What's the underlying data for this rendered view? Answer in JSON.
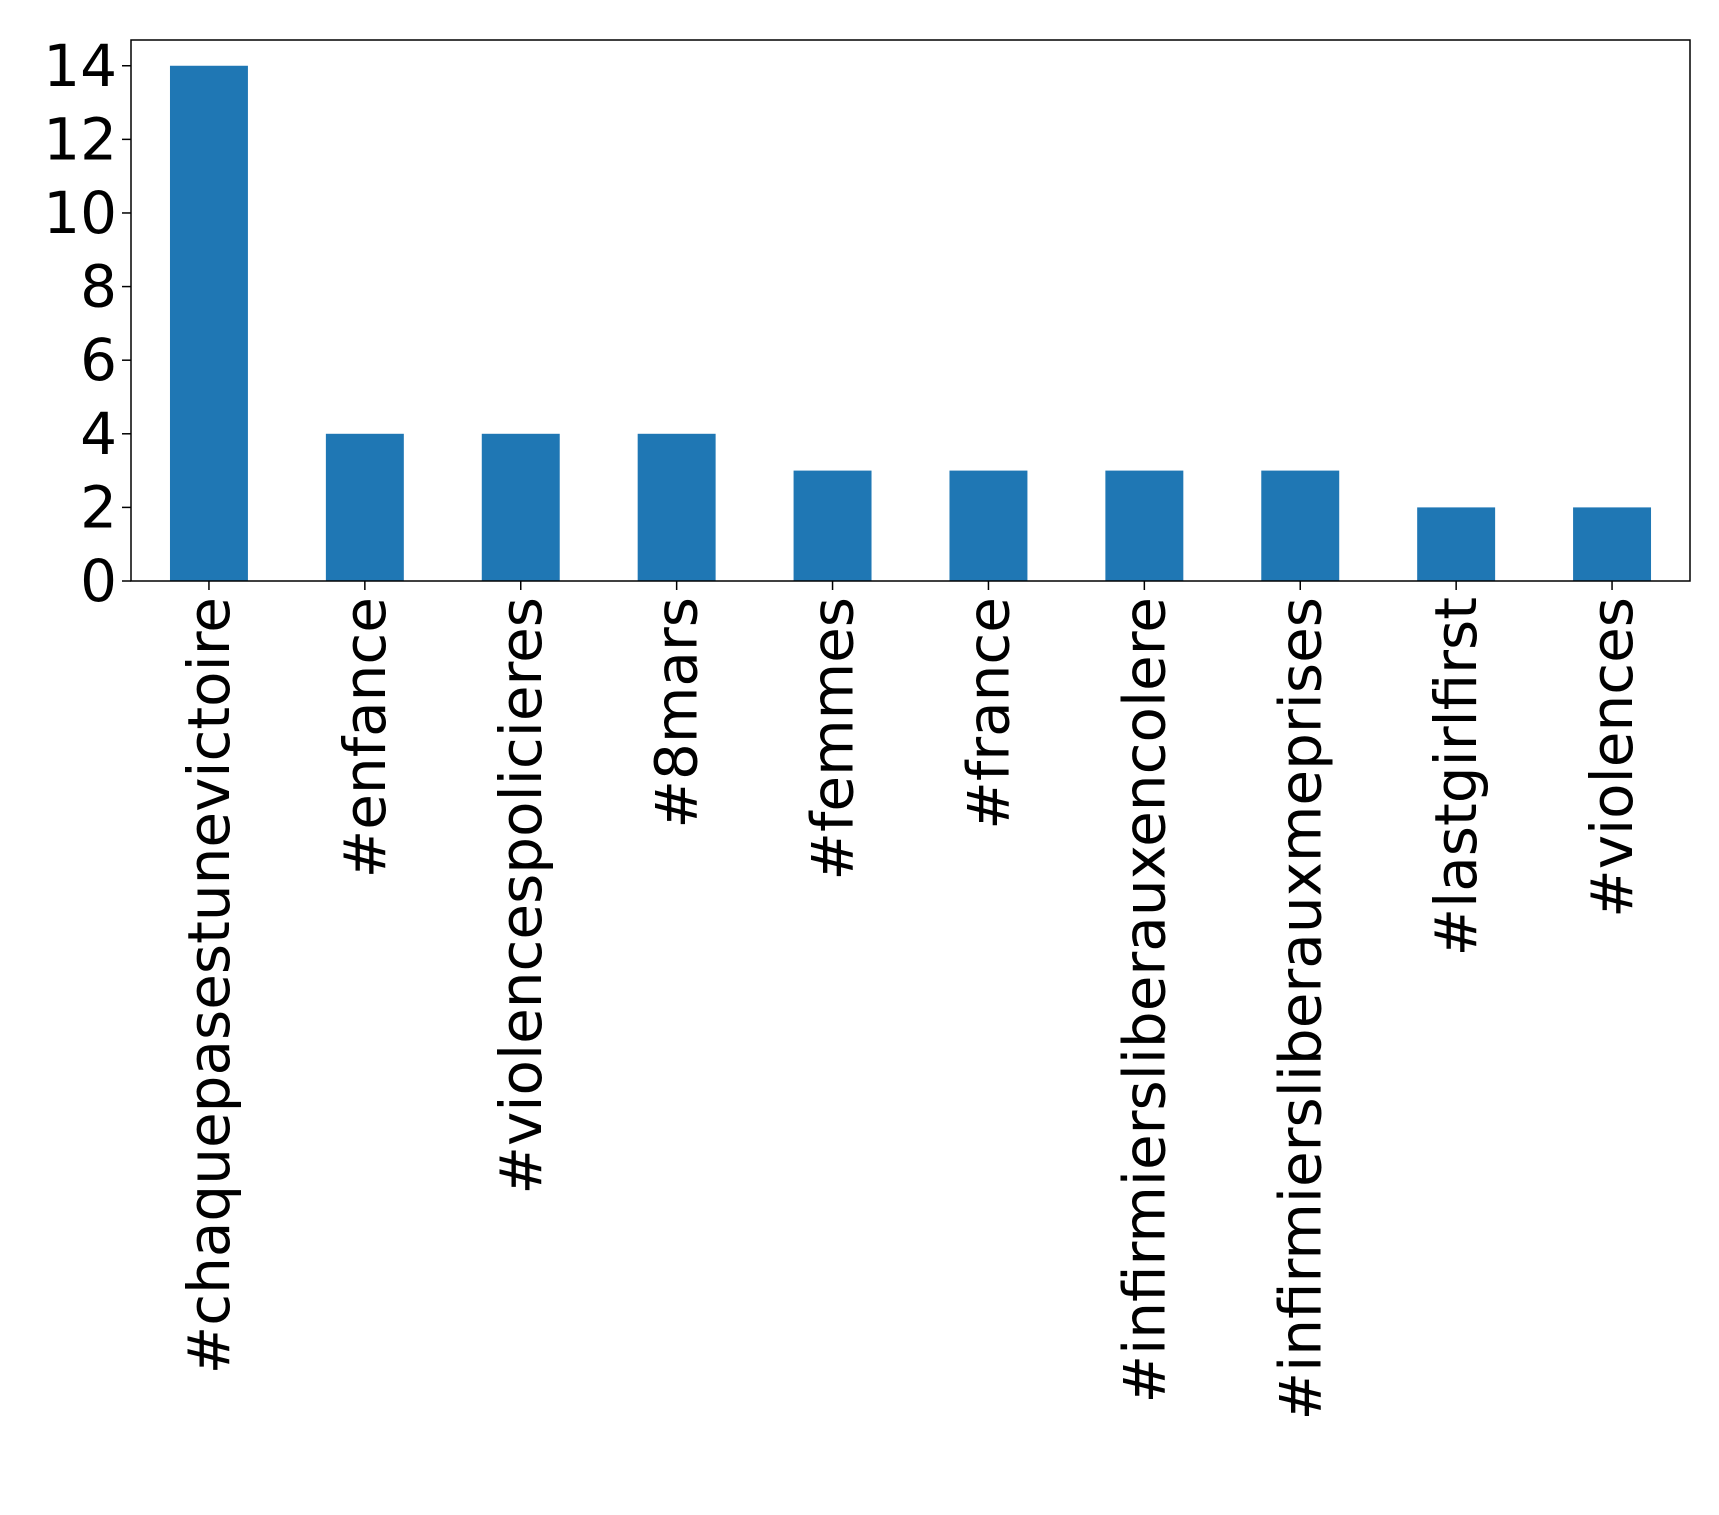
{
  "chart_data": {
    "type": "bar",
    "title": "",
    "xlabel": "",
    "ylabel": "",
    "categories": [
      "#chaquepasestunevictoire",
      "#enfance",
      "#violencespolicieres",
      "#8mars",
      "#femmes",
      "#france",
      "#infirmiersliberauxencolere",
      "#infirmiersliberauxmeprises",
      "#lastgirlfirst",
      "#violences"
    ],
    "values": [
      14,
      4,
      4,
      4,
      3,
      3,
      3,
      3,
      2,
      2
    ],
    "ylim": [
      0,
      14.7
    ],
    "yticks": [
      0,
      2,
      4,
      6,
      8,
      10,
      12,
      14
    ],
    "grid": false,
    "bar_color": "#1f77b4",
    "x_tick_rotation": "vertical"
  }
}
